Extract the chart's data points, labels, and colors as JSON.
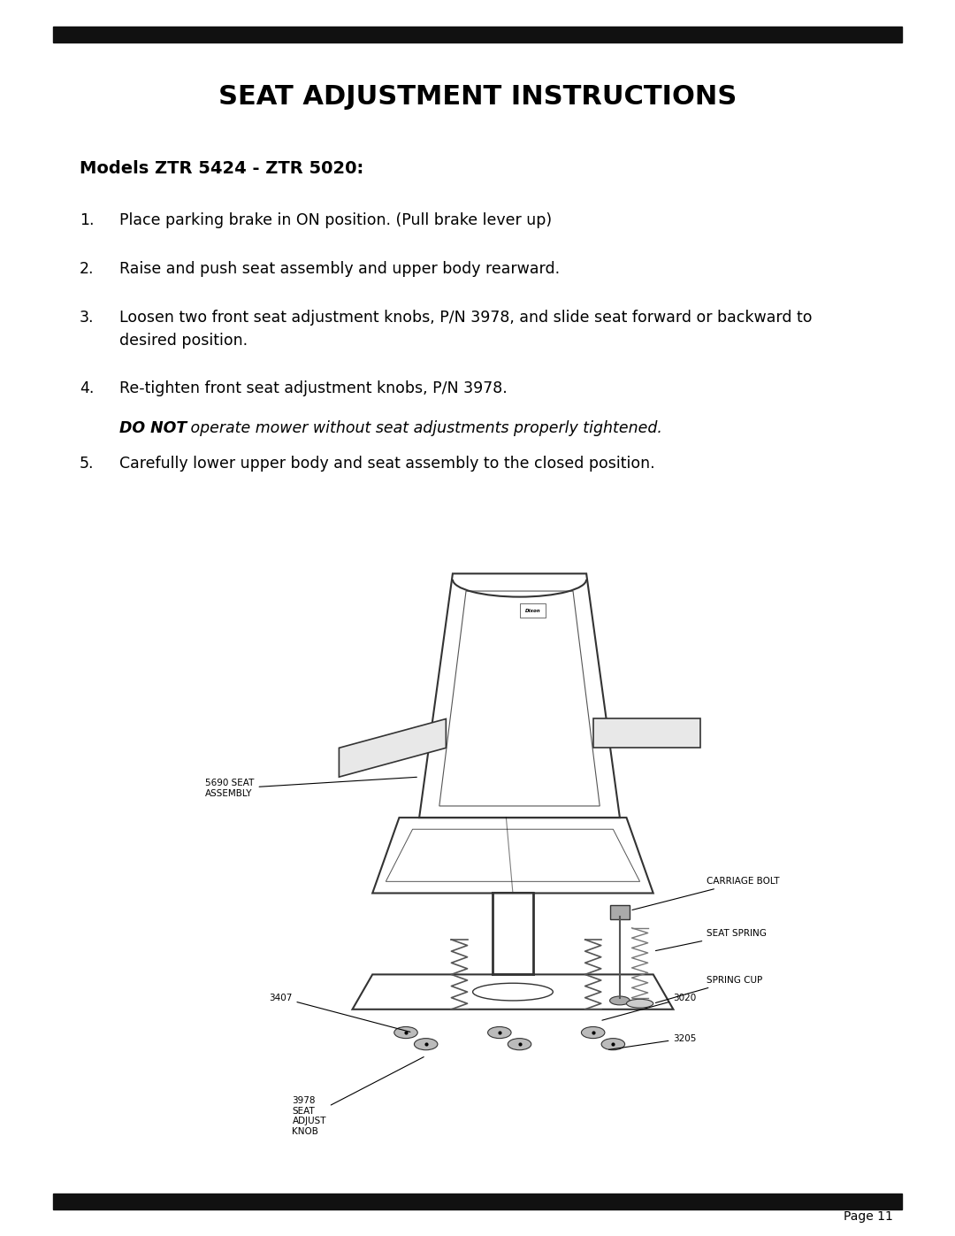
{
  "title": "SEAT ADJUSTMENT INSTRUCTIONS",
  "subtitle": "Models ZTR 5424 - ZTR 5020:",
  "steps": [
    {
      "num": "1.",
      "text": "Place parking brake in ON position. (Pull brake lever up)"
    },
    {
      "num": "2.",
      "text": "Raise and push seat assembly and upper body rearward."
    },
    {
      "num": "3.",
      "text": "Loosen two front seat adjustment knobs, P/N 3978, and slide seat forward or backward to\ndesired position."
    },
    {
      "num": "4.",
      "text": "Re-tighten front seat adjustment knobs, P/N 3978."
    },
    {
      "num": "5.",
      "text": "Carefully lower upper body and seat assembly to the closed position."
    }
  ],
  "warning_italic": "DO NOT",
  "warning_rest": " operate mower without seat adjustments properly tightened.",
  "page_number": "Page 11",
  "bg_color": "#ffffff",
  "text_color": "#000000",
  "bar_color": "#111111"
}
